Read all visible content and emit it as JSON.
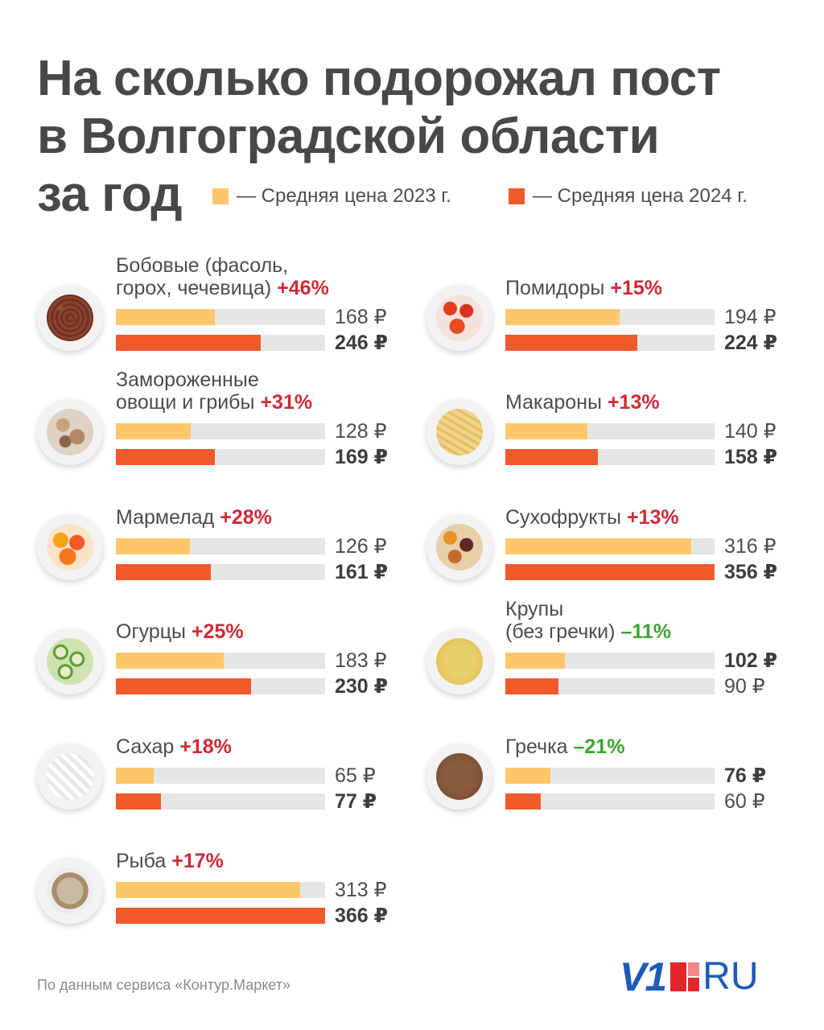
{
  "title": {
    "line1": "На сколько подорожал пост",
    "line2": "в Волгоградской области",
    "line3": "за год"
  },
  "colors": {
    "y2023": "#fdc76a",
    "y2024": "#f15a2b",
    "up": "#cf2a36",
    "down": "#3aa42e",
    "track": "#e5e5e5"
  },
  "chart_data": {
    "type": "bar",
    "legend": [
      "— Средняя цена 2023 г.",
      "— Средняя цена 2024 г."
    ],
    "currency": "₽",
    "xlim": [
      0,
      356
    ],
    "items": [
      {
        "name": "Бобовые (фасоль,\nгорох, чечевица)",
        "change": "+46%",
        "direction": "up",
        "v2023": 168,
        "v2024": 246,
        "p2023": "168 ₽",
        "p2024": "246 ₽",
        "food": "beans-icon"
      },
      {
        "name": "Замороженные\nовощи и грибы",
        "change": "+31%",
        "direction": "up",
        "v2023": 128,
        "v2024": 169,
        "p2023": "128 ₽",
        "p2024": "169 ₽",
        "food": "mushrooms-icon"
      },
      {
        "name": "Мармелад",
        "change": "+28%",
        "direction": "up",
        "v2023": 126,
        "v2024": 161,
        "p2023": "126 ₽",
        "p2024": "161 ₽",
        "food": "marmalade-icon"
      },
      {
        "name": "Огурцы",
        "change": "+25%",
        "direction": "up",
        "v2023": 183,
        "v2024": 230,
        "p2023": "183 ₽",
        "p2024": "230 ₽",
        "food": "cucumbers-icon"
      },
      {
        "name": "Сахар",
        "change": "+18%",
        "direction": "up",
        "v2023": 65,
        "v2024": 77,
        "p2023": "65 ₽",
        "p2024": "77 ₽",
        "food": "sugar-icon"
      },
      {
        "name": "Рыба",
        "change": "+17%",
        "direction": "up",
        "v2023": 313,
        "v2024": 366,
        "p2023": "313 ₽",
        "p2024": "366 ₽",
        "food": "fish-icon"
      },
      {
        "name": "Помидоры",
        "change": "+15%",
        "direction": "up",
        "v2023": 194,
        "v2024": 224,
        "p2023": "194 ₽",
        "p2024": "224 ₽",
        "food": "tomatoes-icon"
      },
      {
        "name": "Макароны",
        "change": "+13%",
        "direction": "up",
        "v2023": 140,
        "v2024": 158,
        "p2023": "140 ₽",
        "p2024": "158 ₽",
        "food": "pasta-icon"
      },
      {
        "name": "Сухофрукты",
        "change": "+13%",
        "direction": "up",
        "v2023": 316,
        "v2024": 356,
        "p2023": "316 ₽",
        "p2024": "356 ₽",
        "food": "dried-fruits-icon"
      },
      {
        "name": "Крупы\n(без гречки)",
        "change": "–11%",
        "direction": "down",
        "v2023": 102,
        "v2024": 90,
        "p2023": "102 ₽",
        "p2024": "90 ₽",
        "food": "grain-icon"
      },
      {
        "name": "Гречка",
        "change": "–21%",
        "direction": "down",
        "v2023": 76,
        "v2024": 60,
        "p2023": "76 ₽",
        "p2024": "60 ₽",
        "food": "buckwheat-icon"
      }
    ]
  },
  "source": "По данным сервиса «Контур.Маркет»",
  "logo": {
    "main": "V1",
    "suffix": "RU"
  }
}
